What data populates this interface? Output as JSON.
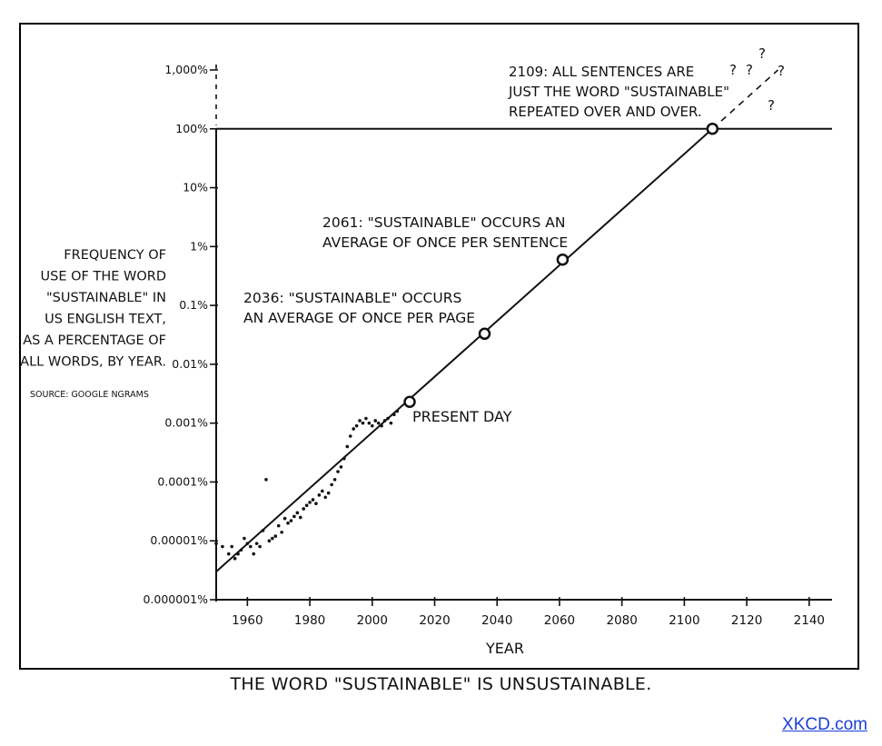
{
  "caption": "THE WORD \"SUSTAINABLE\" IS UNSUSTAINABLE.",
  "link_text": "XKCD.com",
  "colors": {
    "ink": "#111111",
    "link": "#1a3fd6",
    "background": "#ffffff"
  },
  "chart_data": {
    "type": "scatter",
    "xlabel": "YEAR",
    "ylabel_lines": [
      "FREQUENCY OF",
      "USE OF THE WORD",
      "\"SUSTAINABLE\" IN",
      "US ENGLISH TEXT,",
      "AS A PERCENTAGE OF",
      "ALL WORDS, BY YEAR."
    ],
    "source": "SOURCE: GOOGLE NGRAMS",
    "y_scale": "log",
    "xlim": [
      1950,
      2145
    ],
    "ylim_percent": [
      1e-06,
      1000
    ],
    "x_ticks": [
      1960,
      1980,
      2000,
      2020,
      2040,
      2060,
      2080,
      2100,
      2120,
      2140
    ],
    "x_tick_labels": [
      "1960",
      "1980",
      "2000",
      "2020",
      "2040",
      "2060",
      "2080",
      "2100",
      "2120",
      "2140"
    ],
    "y_ticks": [
      1e-06,
      1e-05,
      0.0001,
      0.001,
      0.01,
      0.1,
      1,
      10,
      100,
      1000
    ],
    "y_tick_labels": [
      "0.000001%",
      "0.00001%",
      "0.0001%",
      "0.001%",
      "0.01%",
      "0.1%",
      "1%",
      "10%",
      "100%",
      "1,000%"
    ],
    "grid": false,
    "reference_line_percent": 100,
    "trend": {
      "x": [
        1950,
        2109
      ],
      "y": [
        3e-06,
        100
      ]
    },
    "trend_extension": {
      "x": [
        2109,
        2130
      ],
      "y": [
        100,
        1000
      ]
    },
    "observations": {
      "x": [
        1950,
        1952,
        1954,
        1955,
        1956,
        1957,
        1958,
        1959,
        1960,
        1961,
        1962,
        1963,
        1964,
        1965,
        1966,
        1967,
        1968,
        1969,
        1970,
        1971,
        1972,
        1973,
        1974,
        1975,
        1976,
        1977,
        1978,
        1979,
        1980,
        1981,
        1982,
        1983,
        1984,
        1985,
        1986,
        1987,
        1988,
        1989,
        1990,
        1991,
        1992,
        1993,
        1994,
        1995,
        1996,
        1997,
        1998,
        1999,
        2000,
        2001,
        2002,
        2003,
        2004,
        2005,
        2006,
        2007,
        2008
      ],
      "y": [
        9e-06,
        8e-06,
        6e-06,
        8e-06,
        5e-06,
        6e-06,
        7e-06,
        1.1e-05,
        9e-06,
        8e-06,
        6e-06,
        9e-06,
        8e-06,
        1.5e-05,
        0.00011,
        1e-05,
        1.1e-05,
        1.2e-05,
        1.8e-05,
        1.4e-05,
        2.4e-05,
        2e-05,
        2.2e-05,
        2.6e-05,
        3e-05,
        2.5e-05,
        3.5e-05,
        4e-05,
        4.5e-05,
        5e-05,
        4.3e-05,
        6e-05,
        7e-05,
        5.5e-05,
        6.5e-05,
        9e-05,
        0.00011,
        0.00015,
        0.00018,
        0.00025,
        0.0004,
        0.0006,
        0.0008,
        0.0009,
        0.0011,
        0.001,
        0.0012,
        0.001,
        0.0009,
        0.0011,
        0.001,
        0.0009,
        0.0011,
        0.0012,
        0.001,
        0.0014,
        0.0016
      ]
    },
    "milestones": [
      {
        "x": 2012,
        "y": 0.0023,
        "label_lines": [
          "PRESENT DAY"
        ]
      },
      {
        "x": 2036,
        "y": 0.033,
        "label_lines": [
          "2036: \"SUSTAINABLE\" OCCURS",
          "AN AVERAGE OF ONCE PER PAGE"
        ]
      },
      {
        "x": 2061,
        "y": 0.6,
        "label_lines": [
          "2061: \"SUSTAINABLE\" OCCURS AN",
          "AVERAGE OF ONCE PER SENTENCE"
        ]
      },
      {
        "x": 2109,
        "y": 100,
        "label_lines": [
          "2109: ALL SENTENCES ARE",
          "JUST THE WORD \"SUSTAINABLE\"",
          "REPEATED OVER AND OVER."
        ]
      }
    ],
    "question_marks": [
      "?",
      "?",
      "?",
      "?",
      "?"
    ]
  }
}
